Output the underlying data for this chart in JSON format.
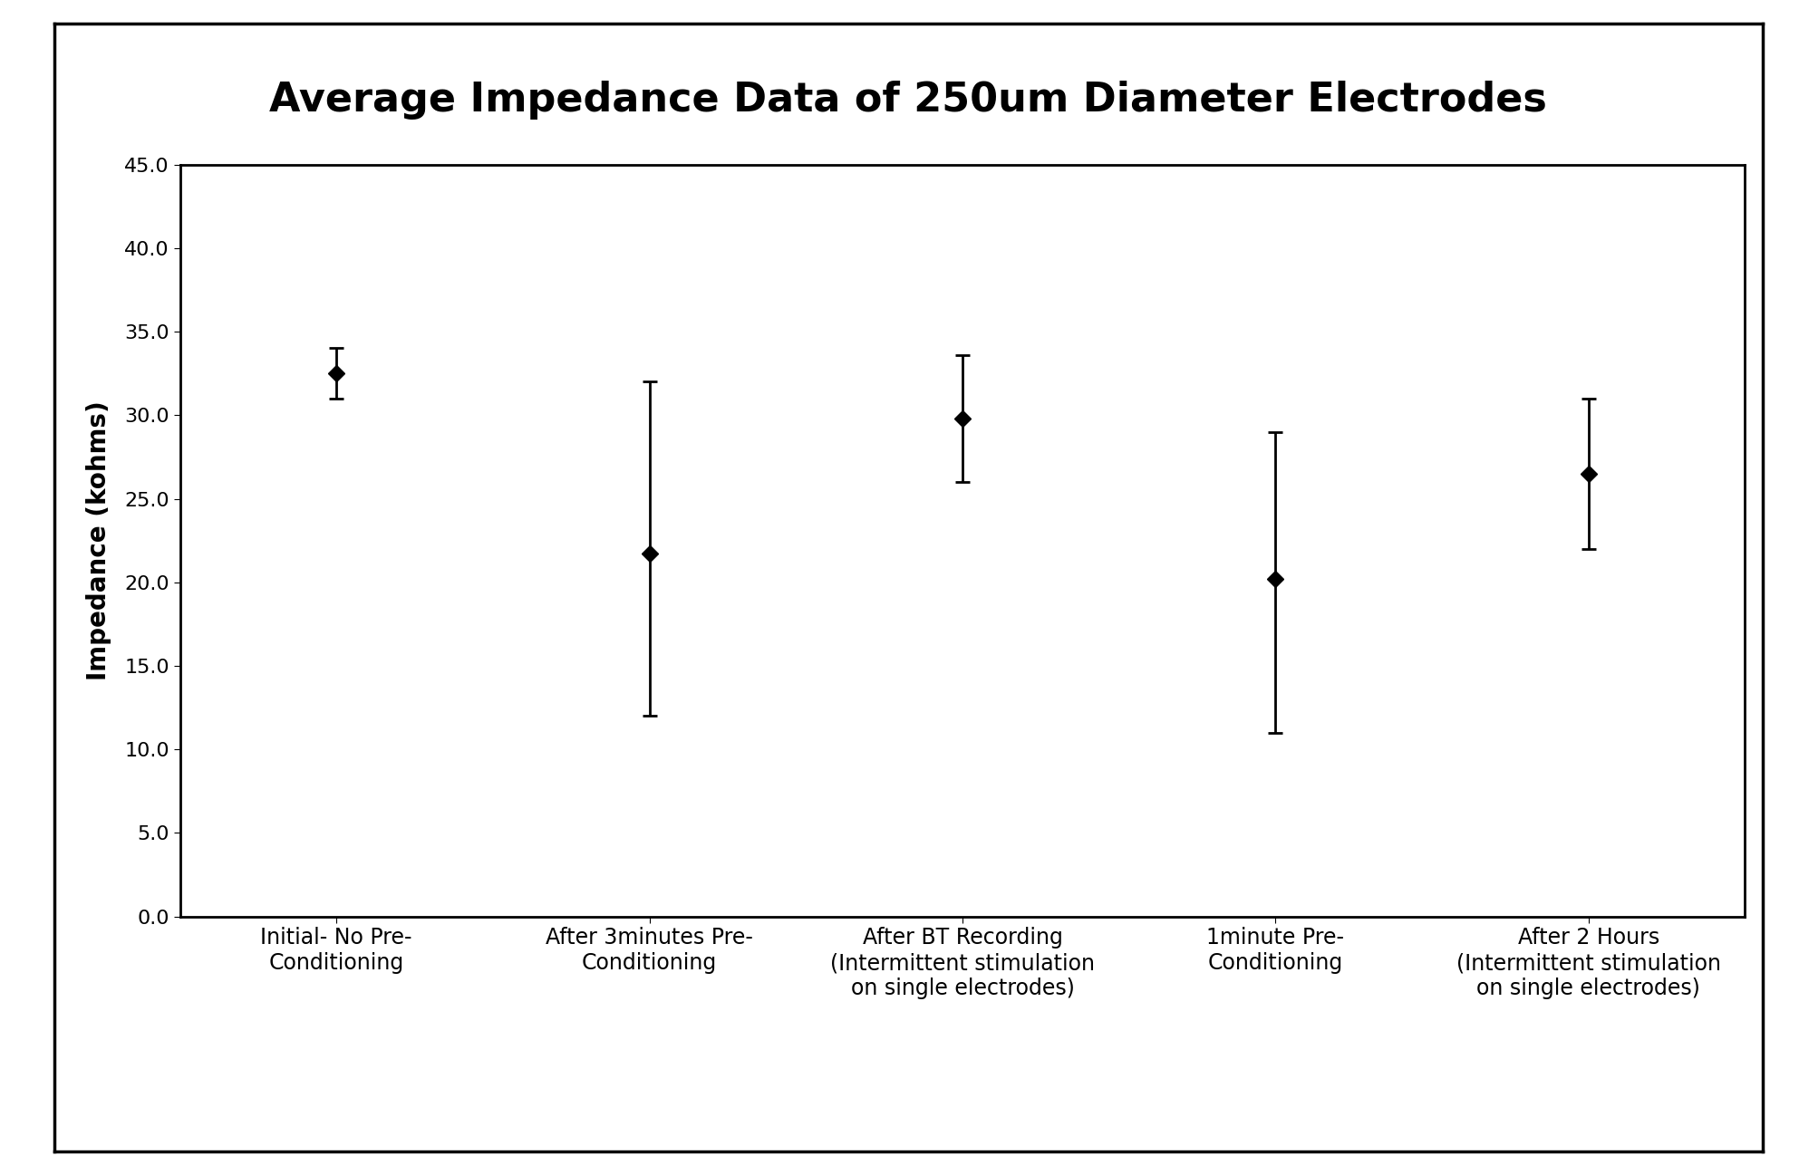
{
  "title": "Average Impedance Data of 250um Diameter Electrodes",
  "ylabel": "Impedance (kohms)",
  "xlabel": "",
  "x_values": [
    0,
    1,
    2,
    3,
    4
  ],
  "y_values": [
    32.5,
    21.7,
    29.8,
    20.2,
    26.5
  ],
  "y_err_upper": [
    1.5,
    10.3,
    3.8,
    8.8,
    4.5
  ],
  "y_err_lower": [
    1.5,
    9.7,
    3.8,
    9.2,
    4.5
  ],
  "x_tick_labels": [
    "Initial- No Pre-\nConditioning",
    "After 3minutes Pre-\nConditioning",
    "After BT Recording\n(Intermittent stimulation\non single electrodes)",
    "1minute Pre-\nConditioning",
    "After 2 Hours\n(Intermittent stimulation\non single electrodes)"
  ],
  "ylim": [
    0.0,
    45.0
  ],
  "yticks": [
    0.0,
    5.0,
    10.0,
    15.0,
    20.0,
    25.0,
    30.0,
    35.0,
    40.0,
    45.0
  ],
  "line_color": "#000000",
  "marker_color": "#000000",
  "marker_style": "D",
  "marker_size": 9,
  "line_width": 2.0,
  "title_fontsize": 32,
  "axis_label_fontsize": 20,
  "tick_label_fontsize": 16,
  "xtick_label_fontsize": 17,
  "background_color": "#ffffff",
  "plot_bg_color": "#ffffff"
}
